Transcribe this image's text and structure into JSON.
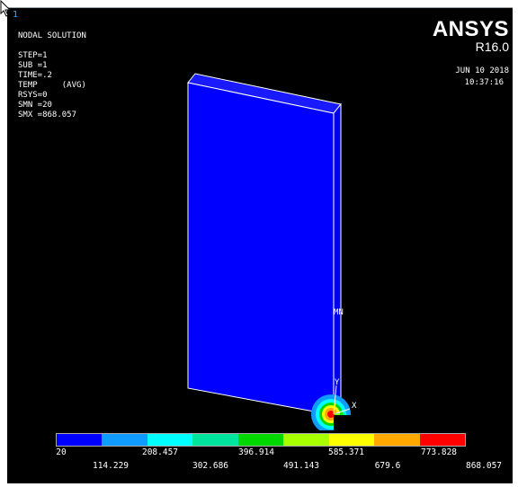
{
  "window": {
    "number": "1"
  },
  "brand": {
    "name": "ANSYS",
    "version": "R16.0"
  },
  "info": {
    "title": "NODAL SOLUTION",
    "step": "STEP=1",
    "sub": "SUB =1",
    "time": "TIME=.2",
    "temp": "TEMP     (AVG)",
    "rsys": "RSYS=0",
    "smn": "SMN =20",
    "smx": "SMX =868.057"
  },
  "timestamp": {
    "date": "JUN 10 2018",
    "time": "10:37:16"
  },
  "model": {
    "min_label": "MN",
    "axis_y": "Y",
    "axis_x": "X",
    "colors": {
      "body": "#0000ff",
      "top": "#1a1aff",
      "edge": "#ffffff"
    }
  },
  "legend": {
    "colors": [
      "#0000ff",
      "#0f9bff",
      "#00ffff",
      "#00e59e",
      "#00d800",
      "#a8ff00",
      "#ffff00",
      "#ffa800",
      "#ff0000"
    ],
    "row1_labels": [
      "20",
      "208.457",
      "396.914",
      "585.371",
      "773.828"
    ],
    "row2_labels": [
      "114.229",
      "302.686",
      "491.143",
      "679.6",
      "868.057"
    ]
  }
}
